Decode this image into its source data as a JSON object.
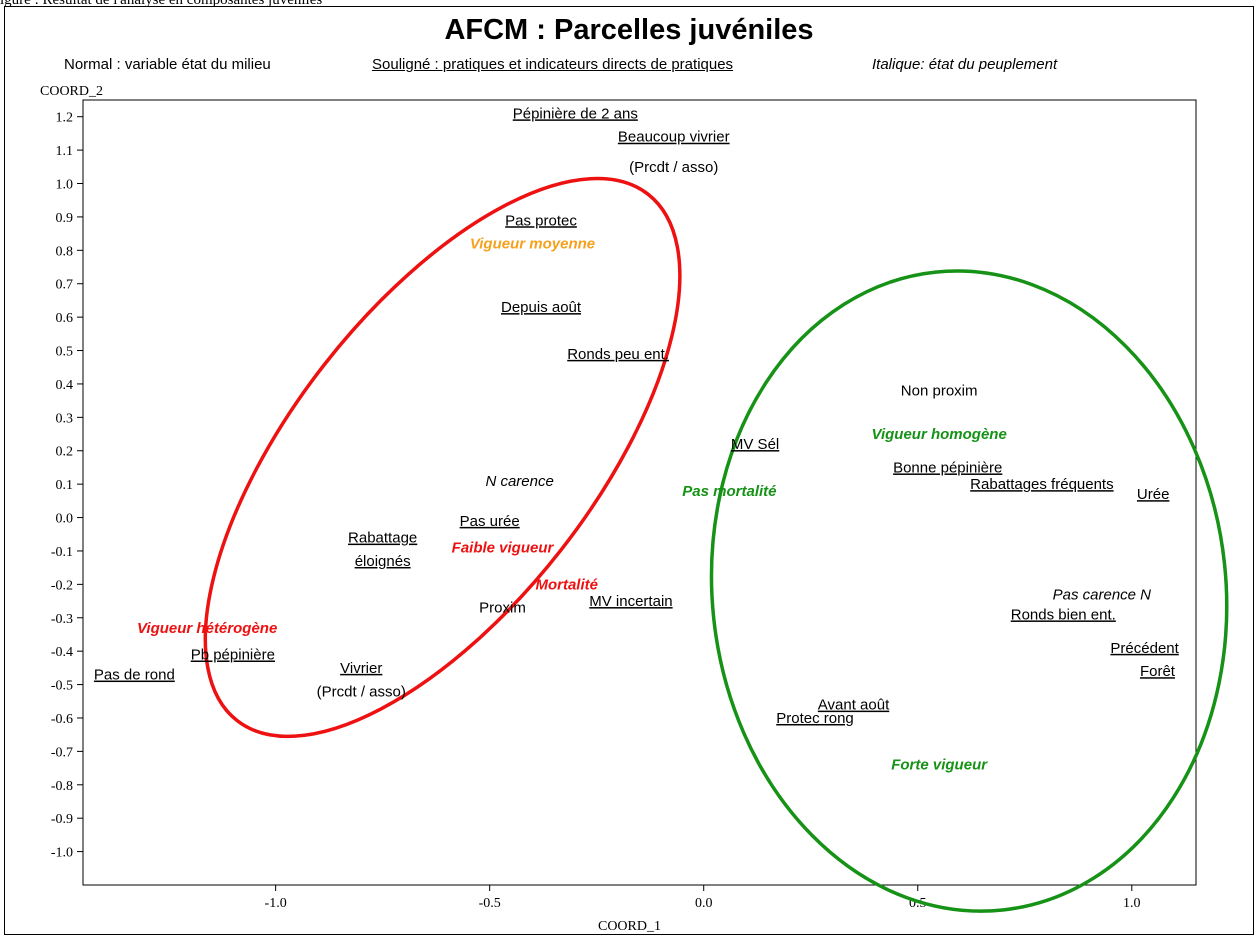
{
  "top_strip_text": "igure : Résultat de l'analyse en composantes juvéniles",
  "title": "AFCM : Parcelles juvéniles",
  "legend_key": {
    "normal": "Normal : variable état du milieu",
    "underline": "Souligné : pratiques et indicateurs directs de pratiques",
    "italic": "Italique: état du peuplement"
  },
  "colors": {
    "red": "#ee1111",
    "green": "#169216",
    "orange": "#f5a11e",
    "black": "#000000"
  },
  "chart_data": {
    "type": "scatter",
    "xlabel": "COORD_1",
    "ylabel": "COORD_2",
    "xlim": [
      -1.45,
      1.15
    ],
    "ylim": [
      -1.1,
      1.25
    ],
    "x_ticks": [
      -1.0,
      -0.5,
      0.0,
      0.5,
      1.0
    ],
    "x_tick_labels": [
      "-1.0",
      "-0.5",
      "0.0",
      "0.5",
      "1.0"
    ],
    "y_ticks": [
      1.2,
      1.1,
      1.0,
      0.9,
      0.8,
      0.7,
      0.6,
      0.5,
      0.4,
      0.3,
      0.2,
      0.1,
      0.0,
      -0.1,
      -0.2,
      -0.3,
      -0.4,
      -0.5,
      -0.6,
      -0.7,
      -0.8,
      -0.9,
      -1.0
    ],
    "y_tick_labels": [
      "1.2",
      "1.1",
      "1.0",
      "0.9",
      "0.8",
      "0.7",
      "0.6",
      "0.5",
      "0.4",
      "0.3",
      "0.2",
      "0.1",
      "0.0",
      "-0.1",
      "-0.2",
      "-0.3",
      "-0.4",
      "-0.5",
      "-0.6",
      "-0.7",
      "-0.8",
      "-0.9",
      "-1.0"
    ],
    "grid": false,
    "points": [
      {
        "label": "Pépinière de 2 ans",
        "x": -0.3,
        "y": 1.21,
        "style": "underline",
        "color": "black"
      },
      {
        "label": "Beaucoup vivrier",
        "x": -0.07,
        "y": 1.14,
        "style": "underline",
        "color": "black"
      },
      {
        "label": "(Prcdt / asso)",
        "x": -0.07,
        "y": 1.05,
        "style": "normal",
        "color": "black"
      },
      {
        "label": "Pas protec",
        "x": -0.38,
        "y": 0.89,
        "style": "underline",
        "color": "black"
      },
      {
        "label": "Vigueur  moyenne",
        "x": -0.4,
        "y": 0.82,
        "style": "bold-italic",
        "color": "orange"
      },
      {
        "label": "Depuis août",
        "x": -0.38,
        "y": 0.63,
        "style": "underline",
        "color": "black"
      },
      {
        "label": "Ronds peu ent.",
        "x": -0.2,
        "y": 0.49,
        "style": "underline",
        "color": "black"
      },
      {
        "label": "Non proxim",
        "x": 0.55,
        "y": 0.38,
        "style": "normal",
        "color": "black"
      },
      {
        "label": "Vigueur homogène",
        "x": 0.55,
        "y": 0.25,
        "style": "bold-italic",
        "color": "green"
      },
      {
        "label": "MV Sél",
        "x": 0.12,
        "y": 0.22,
        "style": "underline",
        "color": "black"
      },
      {
        "label": "Bonne pépinière",
        "x": 0.57,
        "y": 0.15,
        "style": "underline",
        "color": "black"
      },
      {
        "label": "Rabattages fréquents",
        "x": 0.79,
        "y": 0.1,
        "style": "underline",
        "color": "black"
      },
      {
        "label": "Urée",
        "x": 1.05,
        "y": 0.07,
        "style": "underline",
        "color": "black"
      },
      {
        "label": "N carence",
        "x": -0.43,
        "y": 0.11,
        "style": "italic",
        "color": "black"
      },
      {
        "label": "Pas mortalité",
        "x": 0.06,
        "y": 0.08,
        "style": "bold-italic",
        "color": "green"
      },
      {
        "label": "Pas urée",
        "x": -0.5,
        "y": -0.01,
        "style": "underline",
        "color": "black"
      },
      {
        "label": "Rabattage",
        "x": -0.75,
        "y": -0.06,
        "style": "underline",
        "color": "black"
      },
      {
        "label": "éloignés",
        "x": -0.75,
        "y": -0.13,
        "style": "underline",
        "color": "black"
      },
      {
        "label": "Faible vigueur",
        "x": -0.47,
        "y": -0.09,
        "style": "bold-italic",
        "color": "red"
      },
      {
        "label": "Mortalité",
        "x": -0.32,
        "y": -0.2,
        "style": "bold-italic",
        "color": "red"
      },
      {
        "label": "Proxim",
        "x": -0.47,
        "y": -0.27,
        "style": "normal",
        "color": "black"
      },
      {
        "label": "MV incertain",
        "x": -0.17,
        "y": -0.25,
        "style": "underline",
        "color": "black"
      },
      {
        "label": "Pas carence N",
        "x": 0.93,
        "y": -0.23,
        "style": "italic",
        "color": "black"
      },
      {
        "label": "Ronds bien ent.",
        "x": 0.84,
        "y": -0.29,
        "style": "underline",
        "color": "black"
      },
      {
        "label": "Vigueur hétérogène",
        "x": -1.16,
        "y": -0.33,
        "style": "bold-italic",
        "color": "red"
      },
      {
        "label": "Pb pépinière",
        "x": -1.1,
        "y": -0.41,
        "style": "underline",
        "color": "black"
      },
      {
        "label": "Précédent",
        "x": 1.03,
        "y": -0.39,
        "style": "underline",
        "color": "black"
      },
      {
        "label": "Pas de rond",
        "x": -1.33,
        "y": -0.47,
        "style": "underline",
        "color": "black"
      },
      {
        "label": "Vivrier",
        "x": -0.8,
        "y": -0.45,
        "style": "underline",
        "color": "black"
      },
      {
        "label": "Forêt",
        "x": 1.06,
        "y": -0.46,
        "style": "underline",
        "color": "black"
      },
      {
        "label": "(Prcdt / asso)",
        "x": -0.8,
        "y": -0.52,
        "style": "normal",
        "color": "black"
      },
      {
        "label": "Avant août",
        "x": 0.35,
        "y": -0.56,
        "style": "underline",
        "color": "black"
      },
      {
        "label": "Protec rong",
        "x": 0.26,
        "y": -0.6,
        "style": "underline",
        "color": "black"
      },
      {
        "label": "Forte vigueur",
        "x": 0.55,
        "y": -0.74,
        "style": "bold-italic",
        "color": "green"
      }
    ],
    "ellipses": [
      {
        "name": "red-ellipse",
        "color": "red",
        "cx": -0.61,
        "cy": 0.18,
        "rx": 0.78,
        "ry": 0.45,
        "angle_deg": -52
      },
      {
        "name": "green-ellipse",
        "color": "green",
        "cx": 0.62,
        "cy": -0.22,
        "rx": 0.6,
        "ry": 0.96,
        "angle_deg": -6
      }
    ]
  }
}
